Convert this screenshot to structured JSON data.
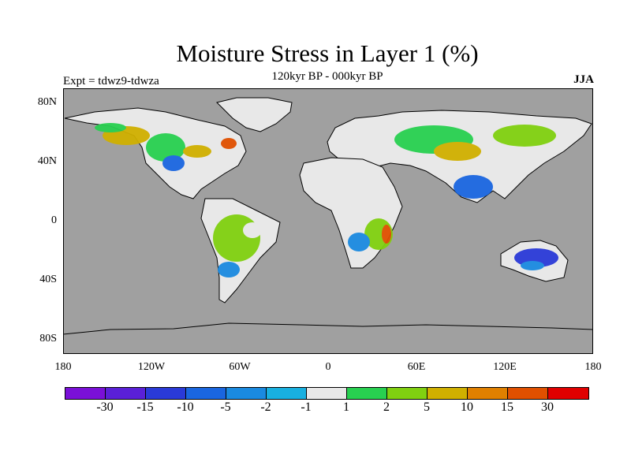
{
  "title": "Moisture Stress in Layer 1 (%)",
  "subtitle": "120kyr BP - 000kyr BP",
  "experiment": "Expt = tdwz9-tdwza",
  "season": "JJA",
  "map": {
    "ocean_color": "#a0a0a0",
    "lat_ticks": [
      "80N",
      "40N",
      "0",
      "40S",
      "80S"
    ],
    "lon_ticks": [
      "180",
      "120W",
      "60W",
      "0",
      "60E",
      "120E",
      "180"
    ]
  },
  "colorbar": {
    "colors": [
      "#7a10d8",
      "#5a20d8",
      "#2a3ad8",
      "#1a66e0",
      "#1a8ae0",
      "#18b0e0",
      "#e8e8e8",
      "#28d050",
      "#80d010",
      "#d0b000",
      "#e08000",
      "#e05000",
      "#e00000"
    ],
    "labels": [
      "-30",
      "-15",
      "-10",
      "-5",
      "-2",
      "-1",
      "1",
      "2",
      "5",
      "10",
      "15",
      "30"
    ]
  }
}
